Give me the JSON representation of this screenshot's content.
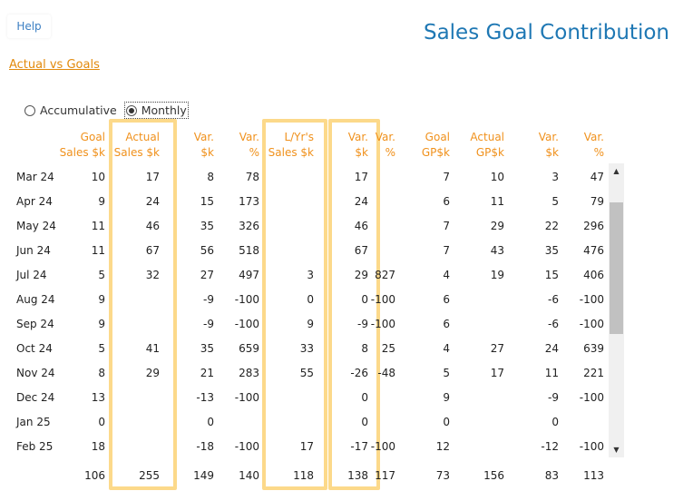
{
  "help_label": "Help",
  "title": "Sales Goal Contribution",
  "link_label": "Actual vs Goals",
  "radios": {
    "accumulative": "Accumulative",
    "monthly": "Monthly",
    "selected": "monthly"
  },
  "columns": {
    "goal_sales": [
      "Goal",
      "Sales $k"
    ],
    "actual_sales": [
      "Actual",
      "Sales $k"
    ],
    "var_k": [
      "Var.",
      "$k"
    ],
    "var_pct": [
      "Var.",
      "%"
    ],
    "ly_sales": [
      "L/Yr's",
      "Sales $k"
    ],
    "ly_var_k": [
      "Var.",
      "$k"
    ],
    "ly_var_pct": [
      "Var.",
      "%"
    ],
    "goal_gp": [
      "Goal",
      "GP$k"
    ],
    "actual_gp": [
      "Actual",
      "GP$k"
    ],
    "gp_var_k": [
      "Var.",
      "$k"
    ],
    "gp_var_pct": [
      "Var.",
      "%"
    ]
  },
  "rows": [
    {
      "month": "Mar 24",
      "goal_sales": "10",
      "actual_sales": "17",
      "var_k": "8",
      "var_pct": "78",
      "ly_sales": "",
      "ly_var_k": "17",
      "ly_var_pct": "",
      "goal_gp": "7",
      "actual_gp": "10",
      "gp_var_k": "3",
      "gp_var_pct": "47"
    },
    {
      "month": "Apr 24",
      "goal_sales": "9",
      "actual_sales": "24",
      "var_k": "15",
      "var_pct": "173",
      "ly_sales": "",
      "ly_var_k": "24",
      "ly_var_pct": "",
      "goal_gp": "6",
      "actual_gp": "11",
      "gp_var_k": "5",
      "gp_var_pct": "79"
    },
    {
      "month": "May 24",
      "goal_sales": "11",
      "actual_sales": "46",
      "var_k": "35",
      "var_pct": "326",
      "ly_sales": "",
      "ly_var_k": "46",
      "ly_var_pct": "",
      "goal_gp": "7",
      "actual_gp": "29",
      "gp_var_k": "22",
      "gp_var_pct": "296"
    },
    {
      "month": "Jun 24",
      "goal_sales": "11",
      "actual_sales": "67",
      "var_k": "56",
      "var_pct": "518",
      "ly_sales": "",
      "ly_var_k": "67",
      "ly_var_pct": "",
      "goal_gp": "7",
      "actual_gp": "43",
      "gp_var_k": "35",
      "gp_var_pct": "476"
    },
    {
      "month": "Jul 24",
      "goal_sales": "5",
      "actual_sales": "32",
      "var_k": "27",
      "var_pct": "497",
      "ly_sales": "3",
      "ly_var_k": "29",
      "ly_var_pct": "827",
      "goal_gp": "4",
      "actual_gp": "19",
      "gp_var_k": "15",
      "gp_var_pct": "406"
    },
    {
      "month": "Aug 24",
      "goal_sales": "9",
      "actual_sales": "",
      "var_k": "-9",
      "var_pct": "-100",
      "ly_sales": "0",
      "ly_var_k": "0",
      "ly_var_pct": "-100",
      "goal_gp": "6",
      "actual_gp": "",
      "gp_var_k": "-6",
      "gp_var_pct": "-100"
    },
    {
      "month": "Sep 24",
      "goal_sales": "9",
      "actual_sales": "",
      "var_k": "-9",
      "var_pct": "-100",
      "ly_sales": "9",
      "ly_var_k": "-9",
      "ly_var_pct": "-100",
      "goal_gp": "6",
      "actual_gp": "",
      "gp_var_k": "-6",
      "gp_var_pct": "-100"
    },
    {
      "month": "Oct 24",
      "goal_sales": "5",
      "actual_sales": "41",
      "var_k": "35",
      "var_pct": "659",
      "ly_sales": "33",
      "ly_var_k": "8",
      "ly_var_pct": "25",
      "goal_gp": "4",
      "actual_gp": "27",
      "gp_var_k": "24",
      "gp_var_pct": "639"
    },
    {
      "month": "Nov 24",
      "goal_sales": "8",
      "actual_sales": "29",
      "var_k": "21",
      "var_pct": "283",
      "ly_sales": "55",
      "ly_var_k": "-26",
      "ly_var_pct": "-48",
      "goal_gp": "5",
      "actual_gp": "17",
      "gp_var_k": "11",
      "gp_var_pct": "221"
    },
    {
      "month": "Dec 24",
      "goal_sales": "13",
      "actual_sales": "",
      "var_k": "-13",
      "var_pct": "-100",
      "ly_sales": "",
      "ly_var_k": "0",
      "ly_var_pct": "",
      "goal_gp": "9",
      "actual_gp": "",
      "gp_var_k": "-9",
      "gp_var_pct": "-100"
    },
    {
      "month": "Jan 25",
      "goal_sales": "0",
      "actual_sales": "",
      "var_k": "0",
      "var_pct": "",
      "ly_sales": "",
      "ly_var_k": "0",
      "ly_var_pct": "",
      "goal_gp": "0",
      "actual_gp": "",
      "gp_var_k": "0",
      "gp_var_pct": ""
    },
    {
      "month": "Feb 25",
      "goal_sales": "18",
      "actual_sales": "",
      "var_k": "-18",
      "var_pct": "-100",
      "ly_sales": "17",
      "ly_var_k": "-17",
      "ly_var_pct": "-100",
      "goal_gp": "12",
      "actual_gp": "",
      "gp_var_k": "-12",
      "gp_var_pct": "-100"
    }
  ],
  "totals": {
    "goal_sales": "106",
    "actual_sales": "255",
    "var_k": "149",
    "var_pct": "140",
    "ly_sales": "118",
    "ly_var_k": "138",
    "ly_var_pct": "117",
    "goal_gp": "73",
    "actual_gp": "156",
    "gp_var_k": "83",
    "gp_var_pct": "113"
  },
  "scroll": {
    "up_icon": "▲",
    "down_icon": "▼"
  },
  "colors": {
    "header": "#f0911c",
    "title": "#1f78b4",
    "highlight": "#fcd98a",
    "link": "#e28a0c"
  }
}
